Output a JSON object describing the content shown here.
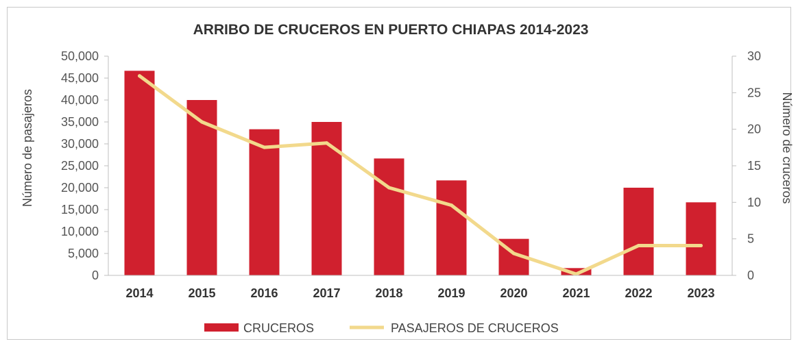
{
  "chart_data": {
    "type": "bar",
    "title": "ARRIBO DE CRUCEROS EN PUERTO CHIAPAS 2014-2023",
    "categories": [
      "2014",
      "2015",
      "2016",
      "2017",
      "2018",
      "2019",
      "2020",
      "2021",
      "2022",
      "2023"
    ],
    "series": [
      {
        "name": "CRUCEROS",
        "type": "bar",
        "axis": "right",
        "color": "#d0202e",
        "values": [
          28,
          24,
          20,
          21,
          16,
          13,
          5,
          1,
          12,
          10
        ]
      },
      {
        "name": "PASAJEROS DE CRUCEROS",
        "type": "line",
        "axis": "left",
        "color": "#f2d98c",
        "values": [
          45500,
          35000,
          29200,
          30200,
          20000,
          16000,
          5000,
          300,
          6800,
          6800
        ]
      }
    ],
    "ylabel_left": "Número de pasajeros",
    "ylabel_right": "Número de cruceros",
    "ylim_left": [
      0,
      50000
    ],
    "ylim_right": [
      0,
      30
    ],
    "yticks_left": [
      "0",
      "5,000",
      "10,000",
      "15,000",
      "20,000",
      "25,000",
      "30,000",
      "35,000",
      "40,000",
      "45,000",
      "50,000"
    ],
    "yticks_right": [
      "0",
      "5",
      "10",
      "15",
      "20",
      "25",
      "30"
    ],
    "grid": false,
    "legend_position": "bottom"
  }
}
